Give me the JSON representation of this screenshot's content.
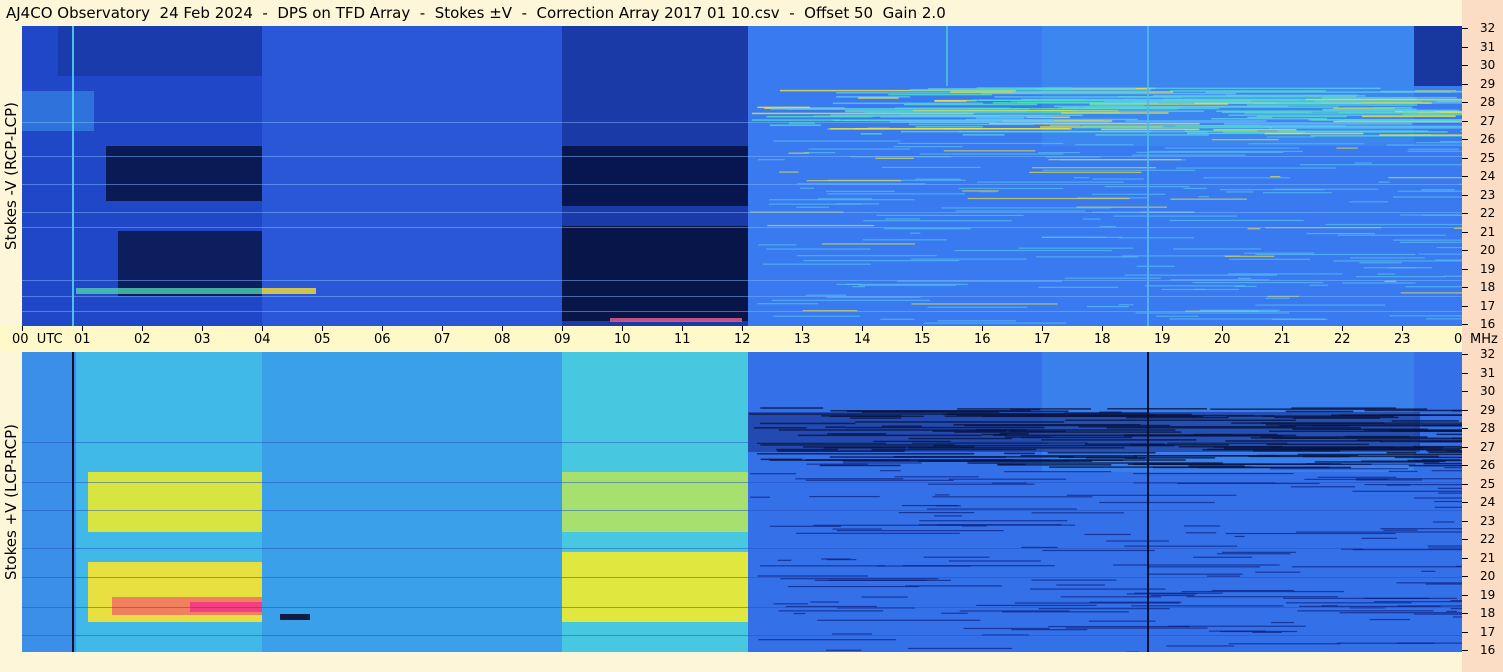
{
  "title": "AJ4CO Observatory  24 Feb 2024  -  DPS on TFD Array  -  Stokes ±V  -  Correction Array 2017 01 10.csv  -  Offset 50  Gain 2.0",
  "chart_data": [
    {
      "type": "heatmap",
      "ylabel": "Stokes -V (RCP-LCP)",
      "y_ticks": [
        "32",
        "31",
        "30",
        "29",
        "28",
        "27",
        "26",
        "25",
        "24",
        "23",
        "22",
        "21",
        "20",
        "19",
        "18",
        "17",
        "16"
      ],
      "x_range_utc_hours": [
        0,
        24
      ],
      "y_range_mhz": [
        16,
        32
      ]
    },
    {
      "type": "heatmap",
      "ylabel": "Stokes +V (LCP-RCP)",
      "y_ticks": [
        "32",
        "31",
        "30",
        "29",
        "28",
        "27",
        "26",
        "25",
        "24",
        "23",
        "22",
        "21",
        "20",
        "19",
        "18",
        "17",
        "16"
      ],
      "x_range_utc_hours": [
        0,
        24
      ],
      "y_range_mhz": [
        16,
        32
      ]
    }
  ],
  "time_axis": {
    "labels": [
      "00  UTC",
      "01",
      "02",
      "03",
      "04",
      "05",
      "06",
      "07",
      "08",
      "09",
      "10",
      "11",
      "12",
      "13",
      "14",
      "15",
      "16",
      "17",
      "18",
      "19",
      "20",
      "21",
      "22",
      "23",
      "00"
    ],
    "unit": "MHz"
  },
  "colors": {
    "base_blue": "#3366ee",
    "dark_navy": "#0a1a55",
    "cyan": "#3fd0e8",
    "yellow": "#f0e040",
    "pink": "#f04080"
  }
}
